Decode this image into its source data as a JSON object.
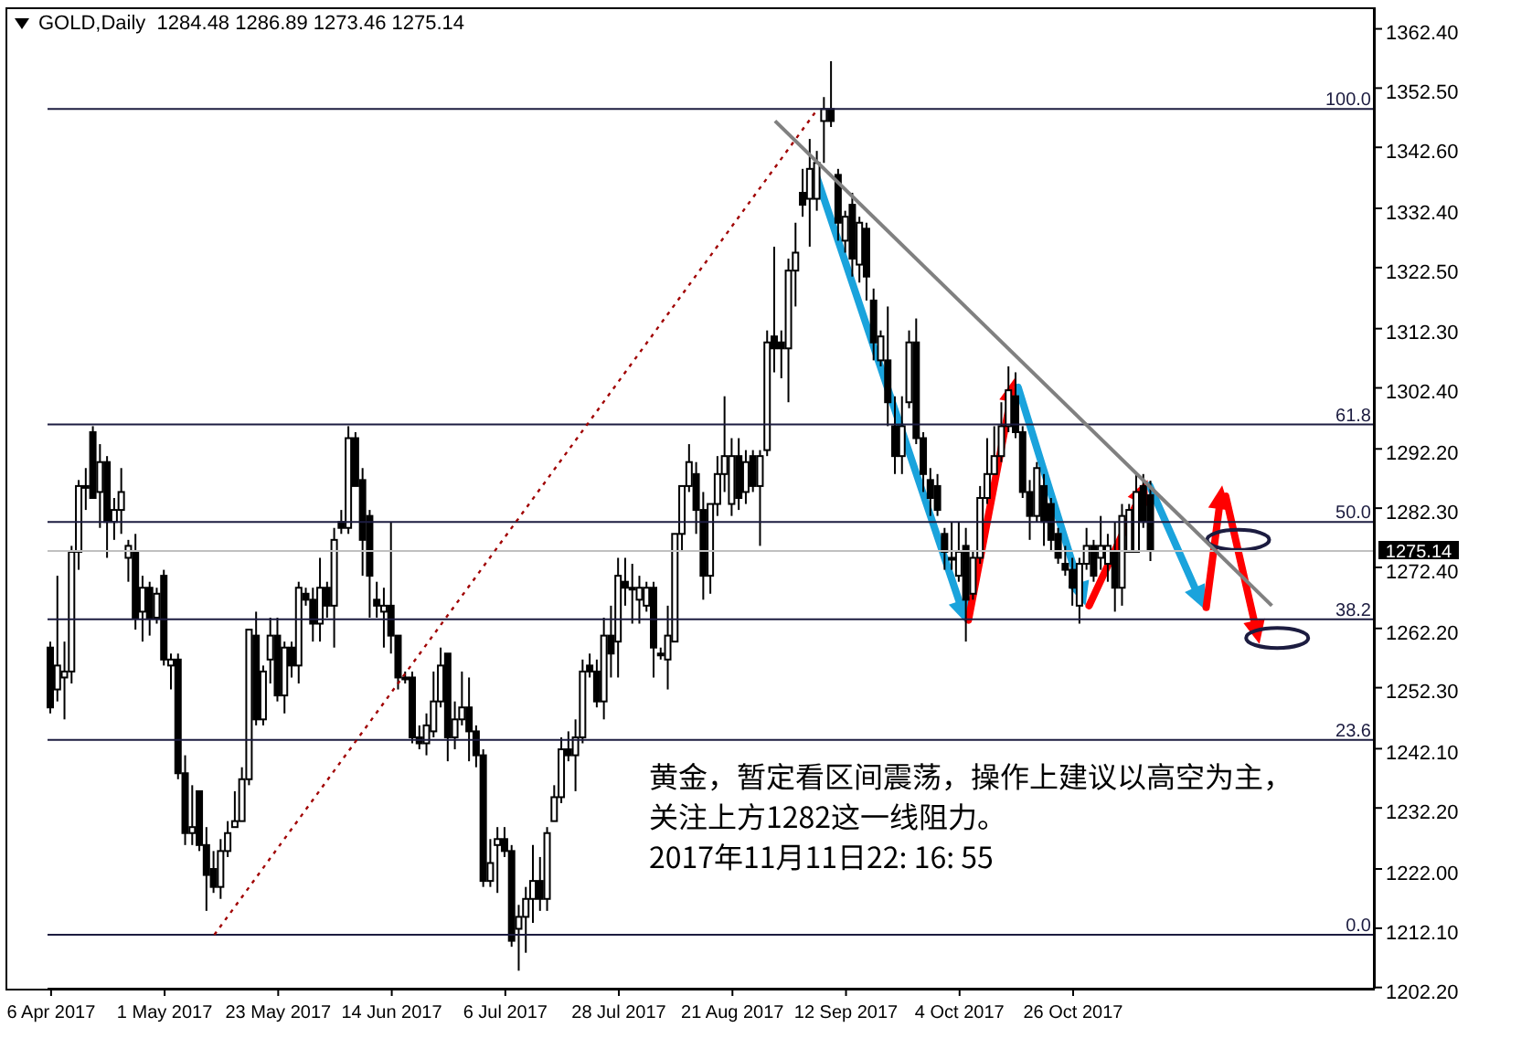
{
  "chart_data": {
    "type": "candlestick",
    "title": "GOLD,Daily  1284.48 1286.89 1273.46 1275.14",
    "color": "#000000",
    "categories": [
      "6 Apr 2017",
      null,
      null,
      null,
      null,
      null,
      null,
      null,
      null,
      null,
      null,
      null,
      null,
      null,
      null,
      null,
      "1 May 2017",
      null,
      null,
      null,
      null,
      null,
      null,
      null,
      null,
      null,
      null,
      null,
      null,
      null,
      null,
      null,
      "23 May 2017",
      null,
      null,
      null,
      null,
      null,
      null,
      null,
      null,
      null,
      null,
      null,
      null,
      null,
      null,
      null,
      "14 Jun 2017",
      null,
      null,
      null,
      null,
      null,
      null,
      null,
      null,
      null,
      null,
      null,
      null,
      null,
      null,
      null,
      "6 Jul 2017",
      null,
      null,
      null,
      null,
      null,
      null,
      null,
      null,
      null,
      null,
      null,
      null,
      null,
      null,
      null,
      "28 Jul 2017",
      null,
      null,
      null,
      null,
      null,
      null,
      null,
      null,
      null,
      null,
      null,
      null,
      null,
      null,
      null,
      "21 Aug 2017",
      null,
      null,
      null,
      null,
      null,
      null,
      null,
      null,
      null,
      null,
      null,
      null,
      null,
      null,
      null,
      "12 Sep 2017",
      null,
      null,
      null,
      null,
      null,
      null,
      null,
      null,
      null,
      null,
      null,
      null,
      null,
      null,
      null,
      "4 Oct 2017",
      null,
      null,
      null,
      null,
      null,
      null,
      null,
      null,
      null,
      null,
      null,
      null,
      null,
      null,
      null,
      "26 Oct 2017",
      null,
      null,
      null,
      null,
      null,
      null,
      null,
      null,
      null,
      null,
      null,
      null,
      null,
      null,
      null,
      null,
      null,
      null,
      null,
      null,
      null,
      null,
      null,
      null,
      null,
      null,
      null,
      null,
      null,
      null,
      null,
      null,
      null,
      null,
      null,
      null,
      null,
      null,
      null,
      null,
      null,
      null
    ],
    "ohlc": [
      [
        1259,
        1260,
        1248,
        1249
      ],
      [
        1252,
        1271,
        1250,
        1256
      ],
      [
        1254,
        1260,
        1247,
        1255
      ],
      [
        1255,
        1276,
        1253,
        1275
      ],
      [
        1275,
        1287,
        1272,
        1286
      ],
      [
        1286,
        1289,
        1282,
        1286
      ],
      [
        1295,
        1296,
        1284,
        1284
      ],
      [
        1285,
        1293,
        1279,
        1290
      ],
      [
        1290,
        1291,
        1274,
        1280
      ],
      [
        1280,
        1284,
        1277,
        1282
      ],
      [
        1282,
        1289,
        1278,
        1285
      ],
      [
        1274,
        1277,
        1270,
        1276
      ],
      [
        1275,
        1278,
        1262,
        1264
      ],
      [
        1265,
        1271,
        1260,
        1269
      ],
      [
        1269,
        1270,
        1261,
        1264
      ],
      [
        1264,
        1269,
        1263,
        1268
      ],
      [
        1271,
        1272,
        1256,
        1257
      ],
      [
        1256,
        1258,
        1252,
        1257
      ],
      [
        1257,
        1258,
        1237,
        1238
      ],
      [
        1238,
        1241,
        1226,
        1228
      ],
      [
        1228,
        1236,
        1226,
        1229
      ],
      [
        1235,
        1235,
        1225,
        1226
      ],
      [
        1226,
        1229,
        1215,
        1221
      ],
      [
        1222,
        1225,
        1218,
        1219
      ],
      [
        1219,
        1227,
        1217,
        1225
      ],
      [
        1225,
        1230,
        1224,
        1228
      ],
      [
        1229,
        1235,
        1229,
        1230
      ],
      [
        1230,
        1239,
        1230,
        1237
      ],
      [
        1237,
        1262,
        1236,
        1262
      ],
      [
        1261,
        1265,
        1246,
        1247
      ],
      [
        1247,
        1256,
        1246,
        1255
      ],
      [
        1257,
        1264,
        1253,
        1261
      ],
      [
        1261,
        1264,
        1250,
        1251
      ],
      [
        1251,
        1260,
        1248,
        1259
      ],
      [
        1259,
        1260,
        1254,
        1256
      ],
      [
        1256,
        1270,
        1253,
        1269
      ],
      [
        1268,
        1269,
        1266,
        1267
      ],
      [
        1267,
        1269,
        1260,
        1263
      ],
      [
        1263,
        1274,
        1260,
        1269
      ],
      [
        1269,
        1270,
        1264,
        1266
      ],
      [
        1266,
        1279,
        1259,
        1277
      ],
      [
        1280,
        1282,
        1278,
        1279
      ],
      [
        1279,
        1296,
        1278,
        1294
      ],
      [
        1294,
        1295,
        1286,
        1286
      ],
      [
        1287,
        1289,
        1271,
        1277
      ],
      [
        1281,
        1282,
        1264,
        1271
      ],
      [
        1267,
        1270,
        1264,
        1266
      ],
      [
        1265,
        1269,
        1259,
        1266
      ],
      [
        1266,
        1280,
        1258,
        1261
      ],
      [
        1261,
        1261,
        1252,
        1254
      ],
      [
        1254,
        1255,
        1253,
        1254
      ],
      [
        1254,
        1255,
        1243,
        1244
      ],
      [
        1244,
        1246,
        1242,
        1243
      ],
      [
        1243,
        1248,
        1241,
        1246
      ],
      [
        1245,
        1255,
        1244,
        1250
      ],
      [
        1250,
        1259,
        1249,
        1256
      ],
      [
        1258,
        1258,
        1240,
        1244
      ],
      [
        1244,
        1250,
        1242,
        1247
      ],
      [
        1247,
        1255,
        1246,
        1249
      ],
      [
        1249,
        1254,
        1240,
        1245
      ],
      [
        1245,
        1246,
        1239,
        1241
      ],
      [
        1241,
        1242,
        1219,
        1220
      ],
      [
        1220,
        1227,
        1219,
        1223
      ],
      [
        1226,
        1229,
        1218,
        1227
      ],
      [
        1227,
        1229,
        1224,
        1225
      ],
      [
        1225,
        1226,
        1209,
        1210
      ],
      [
        1212,
        1216,
        1205,
        1214
      ],
      [
        1214,
        1219,
        1208,
        1217
      ],
      [
        1217,
        1226,
        1213,
        1220
      ],
      [
        1220,
        1224,
        1215,
        1217
      ],
      [
        1217,
        1229,
        1215,
        1228
      ],
      [
        1230,
        1236,
        1230,
        1234
      ],
      [
        1234,
        1244,
        1233,
        1242
      ],
      [
        1242,
        1245,
        1240,
        1241
      ],
      [
        1241,
        1247,
        1235,
        1244
      ],
      [
        1244,
        1257,
        1243,
        1255
      ],
      [
        1256,
        1258,
        1254,
        1255
      ],
      [
        1255,
        1257,
        1249,
        1250
      ],
      [
        1250,
        1264,
        1247,
        1261
      ],
      [
        1261,
        1266,
        1254,
        1258
      ],
      [
        1260,
        1274,
        1254,
        1271
      ],
      [
        1270,
        1274,
        1266,
        1269
      ],
      [
        1269,
        1273,
        1263,
        1269
      ],
      [
        1267,
        1271,
        1263,
        1269
      ],
      [
        1266,
        1270,
        1265,
        1269
      ],
      [
        1269,
        1270,
        1254,
        1259
      ],
      [
        1258,
        1259,
        1257,
        1258
      ],
      [
        1257,
        1266,
        1252,
        1261
      ],
      [
        1260,
        1278,
        1260,
        1278
      ],
      [
        1278,
        1286,
        1275,
        1286
      ],
      [
        1286,
        1293,
        1285,
        1290
      ],
      [
        1288,
        1290,
        1278,
        1282
      ],
      [
        1282,
        1285,
        1267,
        1271
      ],
      [
        1271,
        1283,
        1268,
        1283
      ],
      [
        1283,
        1291,
        1281,
        1288
      ],
      [
        1288,
        1301,
        1285,
        1291
      ],
      [
        1283,
        1294,
        1281,
        1291
      ],
      [
        1291,
        1294,
        1282,
        1284
      ],
      [
        1285,
        1292,
        1283,
        1290
      ],
      [
        1291,
        1292,
        1285,
        1286
      ],
      [
        1286,
        1292,
        1276,
        1291
      ],
      [
        1292,
        1312,
        1291,
        1310
      ],
      [
        1311,
        1326,
        1305,
        1309
      ],
      [
        1310,
        1312,
        1304,
        1309
      ],
      [
        1309,
        1324,
        1300,
        1322
      ],
      [
        1322,
        1330,
        1316,
        1325
      ],
      [
        1335,
        1339,
        1331,
        1333
      ],
      [
        1334,
        1344,
        1326,
        1339
      ],
      [
        1334,
        1342,
        1332,
        1340
      ],
      [
        1347,
        1351,
        1340,
        1349
      ],
      [
        1349,
        1357,
        1346,
        1347
      ],
      [
        1338,
        1339,
        1327,
        1330
      ],
      [
        1327,
        1332,
        1325,
        1331
      ],
      [
        1333,
        1335,
        1321,
        1324
      ],
      [
        1323,
        1331,
        1320,
        1330
      ],
      [
        1329,
        1330,
        1317,
        1321
      ],
      [
        1317,
        1319,
        1307,
        1310
      ],
      [
        1307,
        1312,
        1306,
        1311
      ],
      [
        1307,
        1316,
        1296,
        1300
      ],
      [
        1296,
        1301,
        1288,
        1291
      ],
      [
        1291,
        1301,
        1288,
        1296
      ],
      [
        1300,
        1312,
        1299,
        1310
      ],
      [
        1310,
        1314,
        1293,
        1294
      ],
      [
        1294,
        1295,
        1285,
        1288
      ],
      [
        1287,
        1289,
        1281,
        1284
      ],
      [
        1286,
        1288,
        1281,
        1282
      ],
      [
        1278,
        1279,
        1272,
        1275
      ],
      [
        1274,
        1280,
        1272,
        1274
      ],
      [
        1271,
        1280,
        1270,
        1275
      ],
      [
        1276,
        1279,
        1260,
        1267
      ],
      [
        1268,
        1275,
        1267,
        1274
      ],
      [
        1274,
        1286,
        1273,
        1284
      ],
      [
        1284,
        1294,
        1283,
        1288
      ],
      [
        1288,
        1296,
        1288,
        1291
      ],
      [
        1291,
        1300,
        1290,
        1296
      ],
      [
        1296,
        1306,
        1295,
        1302
      ],
      [
        1301,
        1305,
        1294,
        1295
      ],
      [
        1295,
        1296,
        1284,
        1285
      ],
      [
        1285,
        1287,
        1277,
        1281
      ],
      [
        1281,
        1290,
        1280,
        1289
      ],
      [
        1286,
        1288,
        1276,
        1280
      ],
      [
        1283,
        1284,
        1275,
        1277
      ],
      [
        1278,
        1279,
        1273,
        1274
      ],
      [
        1273,
        1276,
        1271,
        1272
      ],
      [
        1272,
        1274,
        1266,
        1269
      ],
      [
        1266,
        1274,
        1263,
        1273
      ],
      [
        1273,
        1279,
        1272,
        1276
      ],
      [
        1276,
        1277,
        1270,
        1271
      ],
      [
        1274,
        1281,
        1272,
        1276
      ],
      [
        1273,
        1278,
        1270,
        1276
      ],
      [
        1275,
        1280,
        1265,
        1269
      ],
      [
        1269,
        1283,
        1266,
        1281
      ],
      [
        1275,
        1283,
        1275,
        1282
      ],
      [
        1275,
        1288,
        1275,
        1285
      ],
      [
        1286,
        1288,
        1279,
        1280
      ],
      [
        1284.48,
        1286.89,
        1273.46,
        1275.14
      ],
      null,
      null,
      null,
      null,
      null,
      null,
      null,
      null,
      null,
      null,
      null,
      null,
      null,
      null,
      null,
      null,
      null,
      null,
      null,
      null,
      null,
      null,
      null,
      null,
      null,
      null,
      null,
      null,
      null,
      null,
      null
    ],
    "series": [
      {
        "type": "line",
        "color": "#808080",
        "values": [
          null,
          null,
          null,
          null,
          null,
          null,
          null,
          null,
          null,
          null,
          null,
          null,
          null,
          null,
          null,
          null,
          null,
          null,
          null,
          null,
          null,
          null,
          null,
          null,
          null,
          null,
          null,
          null,
          null,
          null,
          null,
          null,
          null,
          null,
          null,
          null,
          null,
          null,
          null,
          null,
          null,
          null,
          null,
          null,
          null,
          null,
          null,
          null,
          null,
          null,
          null,
          null,
          null,
          null,
          null,
          null,
          null,
          null,
          null,
          null,
          null,
          null,
          null,
          null,
          null,
          null,
          null,
          null,
          null,
          null,
          null,
          null,
          null,
          null,
          null,
          null,
          null,
          null,
          null,
          null,
          null,
          null,
          null,
          null,
          null,
          null,
          null,
          null,
          null,
          null,
          null,
          null,
          null,
          null,
          null,
          null,
          null,
          null,
          null,
          null,
          null,
          null,
          1347,
          null,
          null,
          null,
          null,
          null,
          null,
          null,
          null,
          null,
          null,
          null,
          null,
          null,
          null,
          null,
          null,
          null,
          null,
          null,
          null,
          null,
          null,
          null,
          null,
          null,
          null,
          null,
          null,
          null,
          null,
          null,
          null,
          null,
          null,
          null,
          null,
          null,
          null,
          null,
          null,
          null,
          null,
          null,
          null,
          null,
          null,
          null,
          null,
          null,
          null,
          null,
          null,
          null,
          null,
          null,
          null,
          null,
          null,
          null,
          null,
          null,
          null,
          null,
          null,
          null,
          null,
          null,
          null,
          null,
          1266,
          null,
          null,
          null,
          null,
          null,
          null,
          null,
          null,
          null,
          null,
          null,
          null,
          null,
          null
        ]
      },
      {
        "type": "line",
        "color": "#a00000",
        "line_style": "dotted",
        "values": [
          null,
          null,
          null,
          null,
          null,
          null,
          null,
          null,
          null,
          null,
          null,
          null,
          null,
          null,
          null,
          null,
          null,
          null,
          null,
          null,
          null,
          null,
          null,
          1211,
          null,
          null,
          null,
          null,
          null,
          null,
          null,
          null,
          null,
          null,
          null,
          null,
          null,
          null,
          null,
          null,
          null,
          null,
          null,
          null,
          null,
          null,
          null,
          null,
          null,
          null,
          null,
          null,
          null,
          null,
          null,
          null,
          null,
          null,
          null,
          null,
          null,
          null,
          null,
          null,
          null,
          null,
          null,
          null,
          null,
          null,
          null,
          null,
          null,
          null,
          null,
          null,
          null,
          null,
          null,
          null,
          null,
          null,
          null,
          null,
          null,
          null,
          null,
          null,
          null,
          null,
          null,
          null,
          null,
          null,
          null,
          null,
          null,
          null,
          null,
          null,
          null,
          null,
          null,
          null,
          null,
          null,
          null,
          null,
          1349,
          null,
          null,
          null,
          null,
          null,
          null,
          null,
          null,
          null,
          null,
          null,
          null,
          null,
          null,
          null,
          null,
          null,
          null,
          null,
          null,
          null,
          null,
          null,
          null,
          null,
          null,
          null,
          null,
          null,
          null,
          null,
          null,
          null,
          null,
          null,
          null,
          null,
          null,
          null,
          null,
          null,
          null,
          null,
          null,
          null,
          null,
          null,
          null,
          null,
          null,
          null,
          null,
          null,
          null,
          null,
          null,
          null,
          null,
          null,
          null,
          null,
          null,
          null,
          null,
          null,
          null,
          null,
          null,
          null,
          null,
          null,
          null,
          null,
          null,
          null,
          null,
          null,
          null
        ]
      }
    ],
    "ylim": [
      1202.0,
      1366.0
    ],
    "yticks": [
      {
        "value": 1202.2,
        "label": "1202.20"
      },
      {
        "value": 1212.1,
        "label": "1212.10"
      },
      {
        "value": 1222.0,
        "label": "1222.00"
      },
      {
        "value": 1232.2,
        "label": "1232.20"
      },
      {
        "value": 1242.1,
        "label": "1242.10"
      },
      {
        "value": 1252.3,
        "label": "1252.30"
      },
      {
        "value": 1262.2,
        "label": "1262.20"
      },
      {
        "value": 1272.4,
        "label": "1272.40"
      },
      {
        "value": 1282.3,
        "label": "1282.30"
      },
      {
        "value": 1292.2,
        "label": "1292.20"
      },
      {
        "value": 1302.4,
        "label": "1302.40"
      },
      {
        "value": 1312.3,
        "label": "1312.30"
      },
      {
        "value": 1322.5,
        "label": "1322.50"
      },
      {
        "value": 1332.4,
        "label": "1332.40"
      },
      {
        "value": 1342.6,
        "label": "1342.60"
      },
      {
        "value": 1352.5,
        "label": "1352.50"
      },
      {
        "value": 1362.4,
        "label": "1362.40"
      }
    ],
    "y2lim": [
      -6.52,
      112.32
    ],
    "ref_lines": [
      {
        "axis": "y2",
        "value": 100.0,
        "label": "100.0",
        "color": "#1c1c40"
      },
      {
        "axis": "y2",
        "value": 61.8,
        "label": "61.8",
        "color": "#1c1c40"
      },
      {
        "axis": "y2",
        "value": 50.0,
        "label": "50.0",
        "color": "#1c1c40"
      },
      {
        "axis": "y2",
        "value": 38.2,
        "label": "38.2",
        "color": "#1c1c40"
      },
      {
        "axis": "y2",
        "value": 23.6,
        "label": "23.6",
        "color": "#1c1c40"
      },
      {
        "axis": "y2",
        "value": 0.0,
        "label": "0.0",
        "color": "#1c1c40"
      },
      {
        "axis": "y",
        "value": 1275.14,
        "label": "1275.14",
        "color": "#c0c0c0"
      }
    ],
    "annotations": [
      "黄金，暂定看区间震荡，操作上建议以高空为主，关注上方1282这一线阻力。",
      "2017年11月11日22: 16: 55"
    ]
  }
}
